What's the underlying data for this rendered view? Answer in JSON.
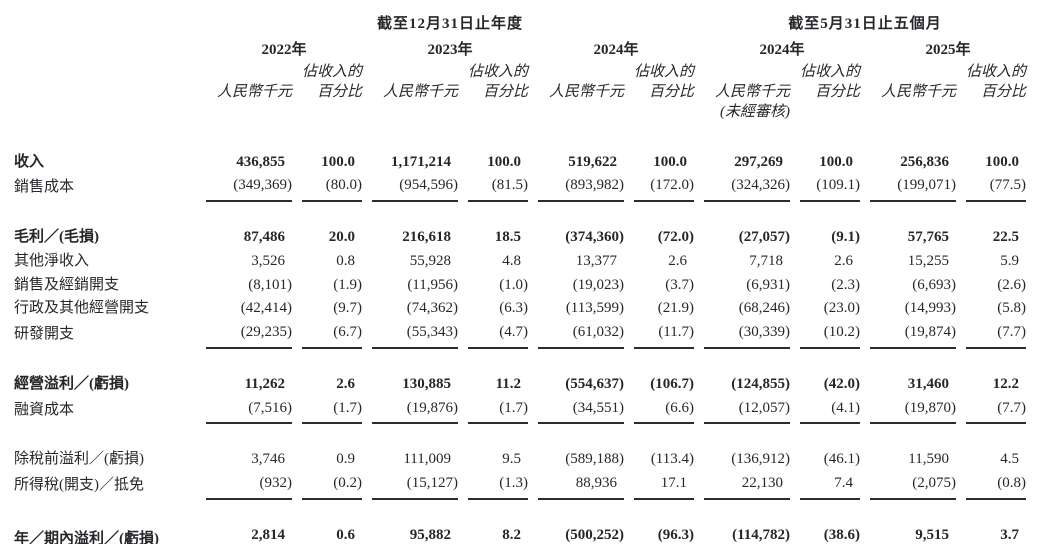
{
  "table": {
    "period_headers": [
      "截至12月31日止年度",
      "截至5月31日止五個月"
    ],
    "years": [
      "2022年",
      "2023年",
      "2024年",
      "2024年",
      "2025年"
    ],
    "col_headers": {
      "rmb": "人民幣千元",
      "pct_line1": "佔收入的",
      "pct_line2": "百分比",
      "unaudited": "(未經審核)"
    },
    "rows": [
      {
        "label": "收入",
        "bold": true,
        "rule": null,
        "values": [
          "436,855",
          "100.0",
          "1,171,214",
          "100.0",
          "519,622",
          "100.0",
          "297,269",
          "100.0",
          "256,836",
          "100.0"
        ]
      },
      {
        "label": "銷售成本",
        "bold": false,
        "rule": "single",
        "values": [
          "(349,369)",
          "(80.0)",
          "(954,596)",
          "(81.5)",
          "(893,982)",
          "(172.0)",
          "(324,326)",
          "(109.1)",
          "(199,071)",
          "(77.5)"
        ]
      },
      {
        "spacer": true
      },
      {
        "label": "毛利／(毛損)",
        "bold": true,
        "rule": null,
        "values": [
          "87,486",
          "20.0",
          "216,618",
          "18.5",
          "(374,360)",
          "(72.0)",
          "(27,057)",
          "(9.1)",
          "57,765",
          "22.5"
        ]
      },
      {
        "label": "其他淨收入",
        "bold": false,
        "rule": null,
        "values": [
          "3,526",
          "0.8",
          "55,928",
          "4.8",
          "13,377",
          "2.6",
          "7,718",
          "2.6",
          "15,255",
          "5.9"
        ]
      },
      {
        "label": "銷售及經銷開支",
        "bold": false,
        "rule": null,
        "values": [
          "(8,101)",
          "(1.9)",
          "(11,956)",
          "(1.0)",
          "(19,023)",
          "(3.7)",
          "(6,931)",
          "(2.3)",
          "(6,693)",
          "(2.6)"
        ]
      },
      {
        "label": "行政及其他經營開支",
        "bold": false,
        "rule": null,
        "values": [
          "(42,414)",
          "(9.7)",
          "(74,362)",
          "(6.3)",
          "(113,599)",
          "(21.9)",
          "(68,246)",
          "(23.0)",
          "(14,993)",
          "(5.8)"
        ]
      },
      {
        "label": "研發開支",
        "bold": false,
        "rule": "single",
        "values": [
          "(29,235)",
          "(6.7)",
          "(55,343)",
          "(4.7)",
          "(61,032)",
          "(11.7)",
          "(30,339)",
          "(10.2)",
          "(19,874)",
          "(7.7)"
        ]
      },
      {
        "spacer": true
      },
      {
        "label": "經營溢利／(虧損)",
        "bold": true,
        "rule": null,
        "values": [
          "11,262",
          "2.6",
          "130,885",
          "11.2",
          "(554,637)",
          "(106.7)",
          "(124,855)",
          "(42.0)",
          "31,460",
          "12.2"
        ]
      },
      {
        "label": "融資成本",
        "bold": false,
        "rule": "single",
        "values": [
          "(7,516)",
          "(1.7)",
          "(19,876)",
          "(1.7)",
          "(34,551)",
          "(6.6)",
          "(12,057)",
          "(4.1)",
          "(19,870)",
          "(7.7)"
        ]
      },
      {
        "spacer": true
      },
      {
        "label": "除稅前溢利／(虧損)",
        "bold": false,
        "rule": null,
        "values": [
          "3,746",
          "0.9",
          "111,009",
          "9.5",
          "(589,188)",
          "(113.4)",
          "(136,912)",
          "(46.1)",
          "11,590",
          "4.5"
        ]
      },
      {
        "label": "所得稅(開支)／抵免",
        "bold": false,
        "rule": "single",
        "values": [
          "(932)",
          "(0.2)",
          "(15,127)",
          "(1.3)",
          "88,936",
          "17.1",
          "22,130",
          "7.4",
          "(2,075)",
          "(0.8)"
        ]
      },
      {
        "spacer": true
      },
      {
        "label": "年／期內溢利／(虧損)",
        "bold": true,
        "rule": "double",
        "values": [
          "2,814",
          "0.6",
          "95,882",
          "8.2",
          "(500,252)",
          "(96.3)",
          "(114,782)",
          "(38.6)",
          "9,515",
          "3.7"
        ]
      }
    ]
  }
}
